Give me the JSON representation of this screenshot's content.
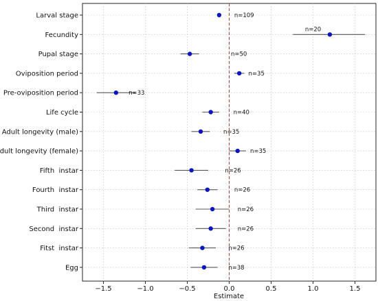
{
  "chart_data": {
    "type": "scatter",
    "xlabel": "Estimate",
    "ylabel": "",
    "xlim": [
      -1.75,
      1.75
    ],
    "x_ticks": [
      -1.5,
      -1.0,
      -0.5,
      0.0,
      0.5,
      1.0,
      1.5
    ],
    "x_tick_labels": [
      "−1.5",
      "−1.0",
      "−0.5",
      "0.0",
      "0.5",
      "1.0",
      "1.5"
    ],
    "grid": true,
    "reference_line": {
      "x": 0,
      "style": "dashed",
      "color": "#c0392b"
    },
    "point_color": "#0a14c8",
    "errorbar_color": "#555555",
    "categories": [
      "Larval stage",
      "Fecundity",
      "Pupal stage",
      "Oviposition period",
      "Pre-oviposition period",
      "Life cycle",
      "Adult longevity (male)",
      "Adult longevity (female)",
      "Fifth  instar",
      "Fourth  instar",
      "Third  instar",
      "Second  instar",
      "Fitst  instar",
      "Egg"
    ],
    "estimates": [
      -0.12,
      1.2,
      -0.47,
      0.12,
      -1.35,
      -0.22,
      -0.34,
      0.1,
      -0.45,
      -0.26,
      -0.2,
      -0.22,
      -0.32,
      -0.3
    ],
    "ci_low": [
      -0.14,
      0.76,
      -0.58,
      0.06,
      -1.58,
      -0.32,
      -0.45,
      0.0,
      -0.65,
      -0.38,
      -0.4,
      -0.4,
      -0.48,
      -0.46
    ],
    "ci_high": [
      -0.1,
      1.62,
      -0.36,
      0.18,
      -1.12,
      -0.12,
      -0.23,
      0.2,
      -0.25,
      -0.14,
      0.0,
      -0.04,
      -0.16,
      -0.14
    ],
    "n_labels": [
      "n=109",
      "n=20",
      "n=50",
      "n=35",
      "n=33",
      "n=40",
      "n=35",
      "n=35",
      "n=26",
      "n=26",
      "n=26",
      "n=26",
      "n=26",
      "n=38"
    ],
    "n_label_x": [
      0.06,
      1.0,
      0.02,
      0.23,
      -1.2,
      0.05,
      -0.07,
      0.25,
      -0.05,
      0.06,
      0.1,
      0.1,
      -0.01,
      -0.01
    ],
    "n_label_above": [
      false,
      true,
      false,
      false,
      false,
      false,
      false,
      false,
      false,
      false,
      false,
      false,
      false,
      false
    ]
  }
}
